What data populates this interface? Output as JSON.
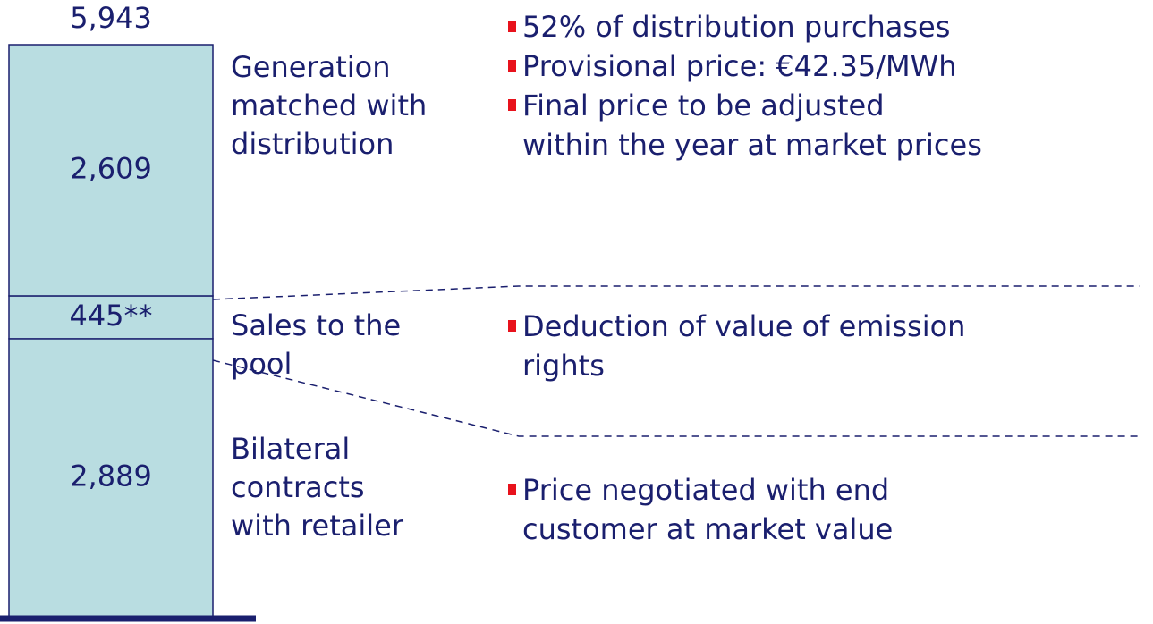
{
  "chart_data": {
    "type": "bar",
    "stacked": true,
    "total": {
      "value": 5943,
      "label": "5,943"
    },
    "series": [
      {
        "name": "Bilateral\ncontracts\nwith retailer",
        "color": "#b9dde1",
        "values": [
          2889
        ],
        "value_labels": [
          "2,889"
        ],
        "notes": [
          "Price negotiated with end\ncustomer at market value"
        ]
      },
      {
        "name": "Sales to the\npool",
        "color": "#b9dde1",
        "values": [
          445
        ],
        "value_labels": [
          "445**"
        ],
        "notes": [
          "Deduction of value of emission\nrights"
        ]
      },
      {
        "name": "Generation\nmatched with\ndistribution",
        "color": "#b9dde1",
        "values": [
          2609
        ],
        "value_labels": [
          "2,609"
        ],
        "notes": [
          "52% of distribution purchases",
          "Provisional price: €42.35/MWh",
          "Final price to be adjusted\nwithin the year at market prices"
        ]
      }
    ]
  }
}
